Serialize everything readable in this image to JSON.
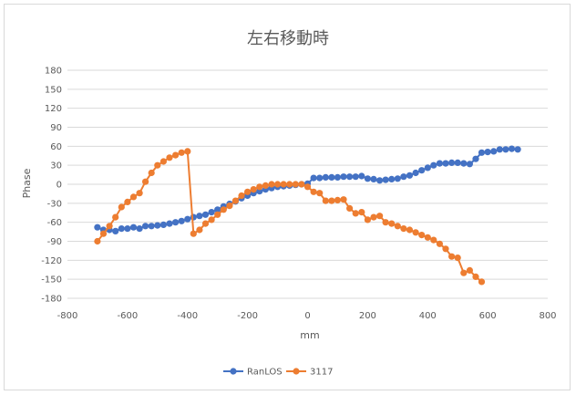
{
  "chart_data": {
    "type": "line",
    "title": "左右移動時",
    "xlabel": "mm",
    "ylabel": "Phase",
    "xlim": [
      -800,
      800
    ],
    "ylim": [
      -180,
      180
    ],
    "x_ticks": [
      "-800",
      "-600",
      "-400",
      "-200",
      "0",
      "200",
      "400",
      "600",
      "800"
    ],
    "y_ticks": [
      "180",
      "150",
      "120",
      "90",
      "60",
      "30",
      "0",
      "-30",
      "-60",
      "-90",
      "-120",
      "-150",
      "-180"
    ],
    "grid": "horizontal",
    "legend": "bottom",
    "series": [
      {
        "name": "RanLOS",
        "color": "#4472c4",
        "points": [
          [
            -700,
            -68
          ],
          [
            -680,
            -72
          ],
          [
            -660,
            -72
          ],
          [
            -640,
            -74
          ],
          [
            -620,
            -70
          ],
          [
            -600,
            -70
          ],
          [
            -580,
            -68
          ],
          [
            -560,
            -70
          ],
          [
            -540,
            -66
          ],
          [
            -520,
            -66
          ],
          [
            -500,
            -65
          ],
          [
            -480,
            -64
          ],
          [
            -460,
            -62
          ],
          [
            -440,
            -60
          ],
          [
            -420,
            -58
          ],
          [
            -400,
            -55
          ],
          [
            -380,
            -52
          ],
          [
            -360,
            -50
          ],
          [
            -340,
            -48
          ],
          [
            -320,
            -44
          ],
          [
            -300,
            -40
          ],
          [
            -280,
            -35
          ],
          [
            -260,
            -31
          ],
          [
            -240,
            -27
          ],
          [
            -220,
            -22
          ],
          [
            -200,
            -18
          ],
          [
            -180,
            -14
          ],
          [
            -160,
            -11
          ],
          [
            -140,
            -8
          ],
          [
            -120,
            -6
          ],
          [
            -100,
            -4
          ],
          [
            -80,
            -3
          ],
          [
            -60,
            -2
          ],
          [
            -40,
            -1
          ],
          [
            -20,
            0
          ],
          [
            0,
            1
          ],
          [
            20,
            10
          ],
          [
            40,
            10
          ],
          [
            60,
            11
          ],
          [
            80,
            11
          ],
          [
            100,
            11
          ],
          [
            120,
            12
          ],
          [
            140,
            12
          ],
          [
            160,
            12
          ],
          [
            180,
            13
          ],
          [
            200,
            9
          ],
          [
            220,
            8
          ],
          [
            240,
            6
          ],
          [
            260,
            7
          ],
          [
            280,
            8
          ],
          [
            300,
            9
          ],
          [
            320,
            12
          ],
          [
            340,
            14
          ],
          [
            360,
            18
          ],
          [
            380,
            22
          ],
          [
            400,
            26
          ],
          [
            420,
            30
          ],
          [
            440,
            33
          ],
          [
            460,
            33
          ],
          [
            480,
            34
          ],
          [
            500,
            34
          ],
          [
            520,
            33
          ],
          [
            540,
            32
          ],
          [
            560,
            40
          ],
          [
            580,
            50
          ],
          [
            600,
            51
          ],
          [
            620,
            52
          ],
          [
            640,
            55
          ],
          [
            660,
            55
          ],
          [
            680,
            56
          ],
          [
            700,
            55
          ]
        ]
      },
      {
        "name": "3117",
        "color": "#ed7d31",
        "points": [
          [
            -700,
            -90
          ],
          [
            -680,
            -78
          ],
          [
            -660,
            -66
          ],
          [
            -640,
            -52
          ],
          [
            -620,
            -36
          ],
          [
            -600,
            -28
          ],
          [
            -580,
            -20
          ],
          [
            -560,
            -14
          ],
          [
            -540,
            4
          ],
          [
            -520,
            18
          ],
          [
            -500,
            30
          ],
          [
            -480,
            36
          ],
          [
            -460,
            42
          ],
          [
            -440,
            46
          ],
          [
            -420,
            50
          ],
          [
            -400,
            52
          ],
          [
            -380,
            -78
          ],
          [
            -360,
            -72
          ],
          [
            -340,
            -62
          ],
          [
            -320,
            -56
          ],
          [
            -300,
            -48
          ],
          [
            -280,
            -40
          ],
          [
            -260,
            -34
          ],
          [
            -240,
            -26
          ],
          [
            -220,
            -18
          ],
          [
            -200,
            -12
          ],
          [
            -180,
            -8
          ],
          [
            -160,
            -4
          ],
          [
            -140,
            -2
          ],
          [
            -120,
            0
          ],
          [
            -100,
            0
          ],
          [
            -80,
            0
          ],
          [
            -60,
            0
          ],
          [
            -40,
            0
          ],
          [
            -20,
            0
          ],
          [
            0,
            -4
          ],
          [
            20,
            -12
          ],
          [
            40,
            -14
          ],
          [
            60,
            -26
          ],
          [
            80,
            -26
          ],
          [
            100,
            -25
          ],
          [
            120,
            -24
          ],
          [
            140,
            -38
          ],
          [
            160,
            -46
          ],
          [
            180,
            -44
          ],
          [
            200,
            -56
          ],
          [
            220,
            -52
          ],
          [
            240,
            -50
          ],
          [
            260,
            -60
          ],
          [
            280,
            -62
          ],
          [
            300,
            -66
          ],
          [
            320,
            -70
          ],
          [
            340,
            -72
          ],
          [
            360,
            -76
          ],
          [
            380,
            -80
          ],
          [
            400,
            -84
          ],
          [
            420,
            -88
          ],
          [
            440,
            -94
          ],
          [
            460,
            -102
          ],
          [
            480,
            -114
          ],
          [
            500,
            -116
          ],
          [
            520,
            -140
          ],
          [
            540,
            -136
          ],
          [
            560,
            -146
          ],
          [
            580,
            -154
          ]
        ]
      }
    ]
  }
}
